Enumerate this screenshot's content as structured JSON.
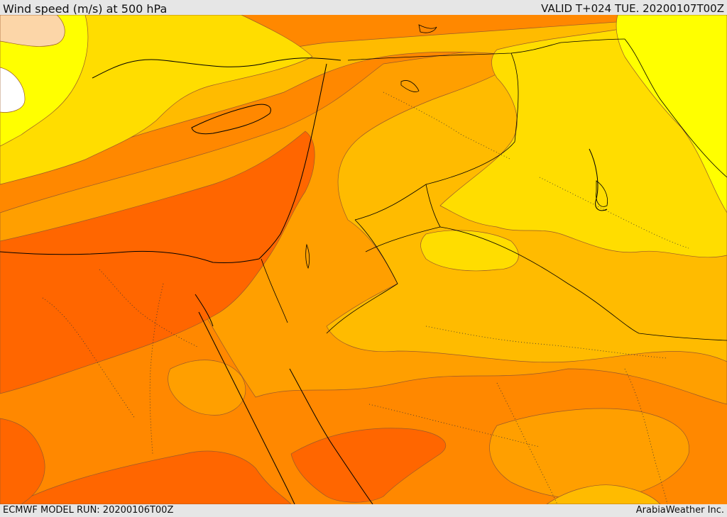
{
  "header": {
    "title": "Wind speed (m/s) at 500 hPa",
    "valid": "VALID T+024 TUE. 20200107T00Z"
  },
  "footer": {
    "model_run": "ECMWF MODEL RUN: 20200106T00Z",
    "credit": "ArabiaWeather Inc."
  },
  "colors": {
    "light_yellow": "#ffff00",
    "yellow": "#ffdd00",
    "gold": "#ffbb00",
    "light_orange": "#ff9f00",
    "orange": "#ff8800",
    "dark_orange": "#ff6600",
    "peach": "#fcd6a8",
    "white": "#ffffff"
  }
}
